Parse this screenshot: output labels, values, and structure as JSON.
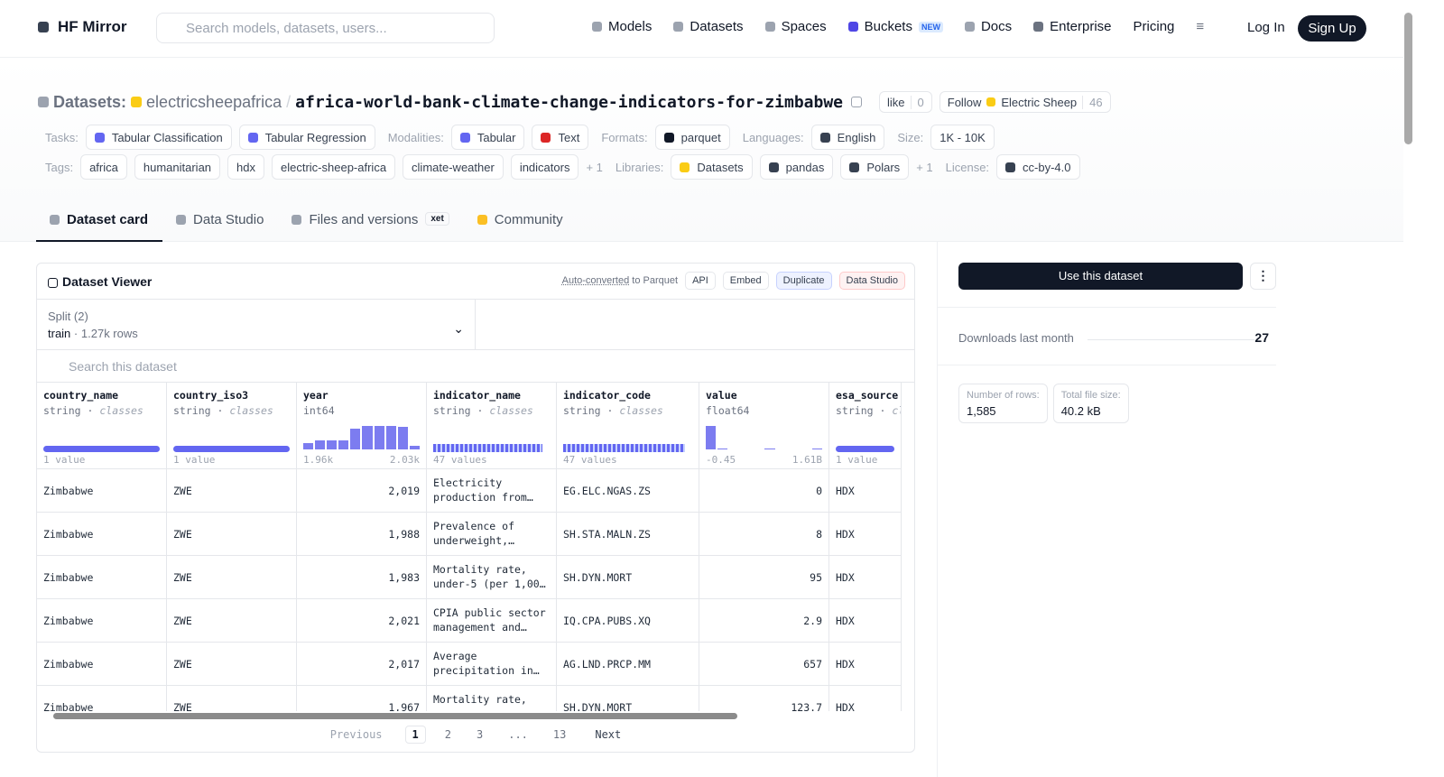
{
  "header": {
    "logo": "HF Mirror",
    "search_placeholder": "Search models, datasets, users...",
    "nav": [
      "Models",
      "Datasets",
      "Spaces",
      "Buckets",
      "Docs",
      "Enterprise",
      "Pricing"
    ],
    "nav_badge": "NEW",
    "login": "Log In",
    "signup": "Sign Up"
  },
  "repo": {
    "prefix": "Datasets:",
    "owner": "electricsheepafrica",
    "separator": "/",
    "name": "africa-world-bank-climate-change-indicators-for-zimbabwe",
    "like": "like",
    "likes": "0",
    "follow": "Follow",
    "org": "Electric Sheep",
    "followers": "46"
  },
  "meta": {
    "rows": [
      [
        {
          "label": "Tasks:",
          "items": [
            "Tabular Classification",
            "Tabular Regression"
          ]
        },
        {
          "label": "Modalities:",
          "items": [
            "Tabular",
            "Text"
          ]
        },
        {
          "label": "Formats:",
          "items": [
            "parquet"
          ]
        },
        {
          "label": "Languages:",
          "items": [
            "English"
          ]
        },
        {
          "label": "Size:",
          "items": [
            "1K - 10K"
          ]
        }
      ],
      [
        {
          "label": "Tags:",
          "items": [
            "africa",
            "humanitarian",
            "hdx",
            "electric-sheep-africa",
            "climate-weather",
            "indicators"
          ],
          "more": "+ 1"
        },
        {
          "label": "Libraries:",
          "items": [
            "Datasets",
            "pandas",
            "Polars"
          ],
          "more": "+ 1"
        },
        {
          "label": "License:",
          "items": [
            "cc-by-4.0"
          ]
        }
      ]
    ]
  },
  "tabs": {
    "items": [
      "Dataset card",
      "Data Studio",
      "Files and versions",
      "Community"
    ],
    "xet": "xet"
  },
  "viewer": {
    "title": "Dataset Viewer",
    "auto": "Auto-converted",
    "to_parquet": "to Parquet",
    "actions": [
      "API",
      "Embed",
      "Duplicate",
      "Data Studio"
    ],
    "split_label": "Split (2)",
    "split": "train",
    "split_dot": "·",
    "split_rows": "1.27k rows",
    "search": "Search this dataset",
    "type_separator": "·",
    "columns": [
      {
        "name": "country_name",
        "type": "string",
        "kind": "classes",
        "summary": [
          "1 value"
        ]
      },
      {
        "name": "country_iso3",
        "type": "string",
        "kind": "classes",
        "summary": [
          "1 value"
        ]
      },
      {
        "name": "year",
        "type": "int64",
        "summary": [
          "1.96k",
          "2.03k"
        ],
        "histogram": [
          25,
          35,
          35,
          35,
          85,
          95,
          95,
          95,
          90,
          15
        ]
      },
      {
        "name": "indicator_name",
        "type": "string",
        "kind": "classes",
        "summary": [
          "47 values"
        ]
      },
      {
        "name": "indicator_code",
        "type": "string",
        "kind": "classes",
        "summary": [
          "47 values"
        ]
      },
      {
        "name": "value",
        "type": "float64",
        "summary": [
          "-0.45",
          "1.61B"
        ],
        "histogram": [
          100,
          5,
          0,
          0,
          0,
          3,
          0,
          0,
          0,
          3
        ]
      },
      {
        "name": "esa_source",
        "type": "string",
        "kind": "cl",
        "summary": [
          "1 value"
        ]
      }
    ],
    "rows": [
      [
        "Zimbabwe",
        "ZWE",
        "2,019",
        "Electricity production from…",
        "EG.ELC.NGAS.ZS",
        "0",
        "HDX"
      ],
      [
        "Zimbabwe",
        "ZWE",
        "1,988",
        "Prevalence of underweight,…",
        "SH.STA.MALN.ZS",
        "8",
        "HDX"
      ],
      [
        "Zimbabwe",
        "ZWE",
        "1,983",
        "Mortality rate, under-5 (per 1,00…",
        "SH.DYN.MORT",
        "95",
        "HDX"
      ],
      [
        "Zimbabwe",
        "ZWE",
        "2,021",
        "CPIA public sector management and…",
        "IQ.CPA.PUBS.XQ",
        "2.9",
        "HDX"
      ],
      [
        "Zimbabwe",
        "ZWE",
        "2,017",
        "Average precipitation in…",
        "AG.LND.PRCP.MM",
        "657",
        "HDX"
      ],
      [
        "Zimbabwe",
        "ZWE",
        "1,967",
        "Mortality rate,",
        "SH.DYN.MORT",
        "123.7",
        "HDX"
      ]
    ],
    "pagination": {
      "previous": "Previous",
      "pages": [
        "1",
        "2",
        "3",
        "...",
        "13"
      ],
      "next": "Next"
    }
  },
  "sidebar": {
    "use": "Use this dataset",
    "downloads_label": "Downloads last month",
    "downloads": "27",
    "stats": [
      {
        "label": "Number of rows:",
        "value": "1,585"
      },
      {
        "label": "Total file size:",
        "value": "40.2 kB"
      }
    ]
  }
}
